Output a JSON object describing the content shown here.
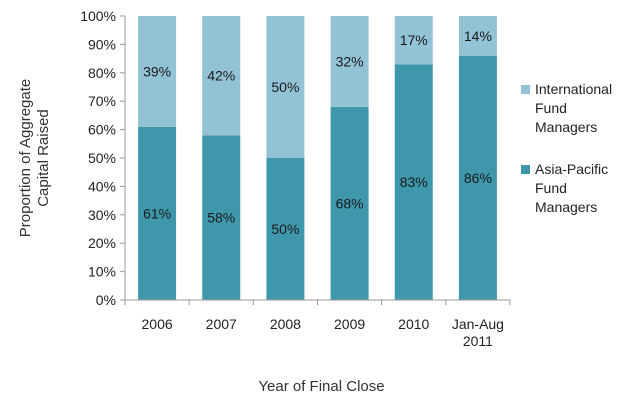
{
  "chart_data": {
    "type": "bar",
    "stacked": true,
    "percent_stacked": true,
    "categories": [
      [
        "2006"
      ],
      [
        "2007"
      ],
      [
        "2008"
      ],
      [
        "2009"
      ],
      [
        "2010"
      ],
      [
        "Jan-Aug",
        "2011"
      ]
    ],
    "series": [
      {
        "name": [
          "Asia-Pacific",
          "Fund",
          "Managers"
        ],
        "values": [
          61,
          58,
          50,
          68,
          83,
          86
        ],
        "labels": [
          "61%",
          "58%",
          "50%",
          "68%",
          "83%",
          "86%"
        ],
        "color": "#3f97ac"
      },
      {
        "name": [
          "International",
          "Fund",
          "Managers"
        ],
        "values": [
          39,
          42,
          50,
          32,
          17,
          14
        ],
        "labels": [
          "39%",
          "42%",
          "50%",
          "32%",
          "17%",
          "14%"
        ],
        "color": "#91c3d4"
      }
    ],
    "xlabel": "Year of Final Close",
    "ylabel": [
      "Proportion of Aggregate",
      "Capital Raised"
    ],
    "ylim": [
      0,
      100
    ],
    "yticks": [
      "0%",
      "10%",
      "20%",
      "30%",
      "40%",
      "50%",
      "60%",
      "70%",
      "80%",
      "90%",
      "100%"
    ],
    "grid": false,
    "legend_position": "right"
  }
}
